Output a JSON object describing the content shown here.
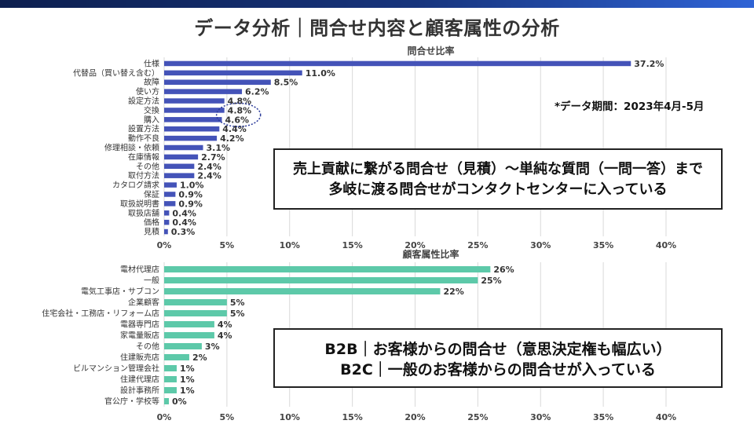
{
  "title": "データ分析｜問合せ内容と顧客属性の分析",
  "note": "*データ期間：2023年4月-5月",
  "callouts": [
    {
      "lines": [
        "売上貢献に繋がる問合せ（見積）～単純な質問（一問一答）まで",
        "多岐に渡る問合せがコンタクトセンターに入っている"
      ]
    },
    {
      "lines": [
        "B2B｜お客様からの問合せ（意思決定権も幅広い）",
        "B2C｜一般のお客様からの問合せが入っている"
      ]
    }
  ],
  "colors": {
    "chart1_bar": "#4453b8",
    "chart2_bar": "#5dc9a9",
    "highlight_circle": "#2a3a99"
  },
  "chart_data": [
    {
      "type": "bar",
      "orientation": "horizontal",
      "title": "問合せ比率",
      "categories": [
        "仕様",
        "代替品（買い替え含む）",
        "故障",
        "使い方",
        "設定方法",
        "交換",
        "購入",
        "設置方法",
        "動作不良",
        "修理相談・依頼",
        "在庫情報",
        "その他",
        "取付方法",
        "カタログ請求",
        "保証",
        "取扱説明書",
        "取扱店舗",
        "価格",
        "見積"
      ],
      "values": [
        37.2,
        11.0,
        8.5,
        6.2,
        4.8,
        4.8,
        4.6,
        4.4,
        4.2,
        3.1,
        2.7,
        2.4,
        2.4,
        1.0,
        0.9,
        0.9,
        0.4,
        0.4,
        0.3
      ],
      "value_labels": [
        "37.2%",
        "11.0%",
        "8.5%",
        "6.2%",
        "4.8%",
        "4.8%",
        "4.6%",
        "4.4%",
        "4.2%",
        "3.1%",
        "2.7%",
        "2.4%",
        "2.4%",
        "1.0%",
        "0.9%",
        "0.9%",
        "0.4%",
        "0.4%",
        "0.3%"
      ],
      "xlim": [
        0,
        40
      ],
      "xticks": [
        0,
        5,
        10,
        15,
        20,
        25,
        30,
        35,
        40
      ],
      "xtick_labels": [
        "0%",
        "5%",
        "10%",
        "15%",
        "20%",
        "25%",
        "30%",
        "35%",
        "40%"
      ],
      "grid": true,
      "highlight_categories": [
        "交換",
        "購入"
      ]
    },
    {
      "type": "bar",
      "orientation": "horizontal",
      "title": "顧客属性比率",
      "categories": [
        "電材代理店",
        "一般",
        "電気工事店・サブコン",
        "企業顧客",
        "住宅会社・工務店・リフォーム店",
        "電器専門店",
        "家電量販店",
        "その他",
        "住建販売店",
        "ビルマンション管理会社",
        "住建代理店",
        "設計事務所",
        "官公庁・学校等"
      ],
      "values": [
        26,
        25,
        22,
        5,
        5,
        4,
        4,
        3,
        2,
        1,
        1,
        1,
        0
      ],
      "value_labels": [
        "26%",
        "25%",
        "22%",
        "5%",
        "5%",
        "4%",
        "4%",
        "3%",
        "2%",
        "1%",
        "1%",
        "1%",
        "0%"
      ],
      "xlim": [
        0,
        40
      ],
      "xticks": [
        0,
        5,
        10,
        15,
        20,
        25,
        30,
        35,
        40
      ],
      "xtick_labels": [
        "0%",
        "5%",
        "10%",
        "15%",
        "20%",
        "25%",
        "30%",
        "35%",
        "40%"
      ],
      "grid": true
    }
  ]
}
